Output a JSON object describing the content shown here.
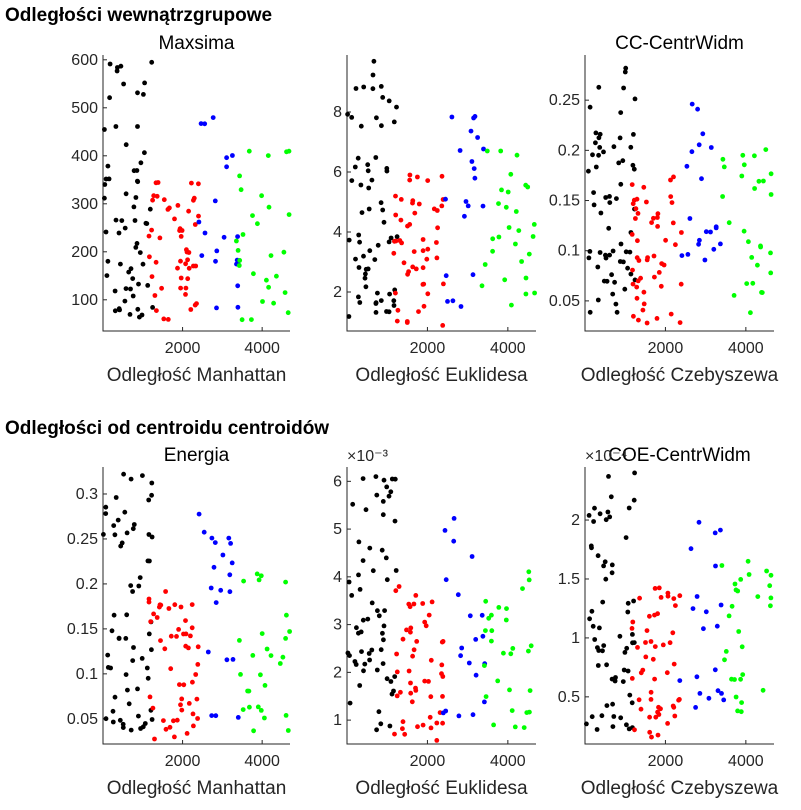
{
  "sections": {
    "top_title": "Odległości wewnątrzgrupowe",
    "bottom_title": "Odległości od centroidu centroidów"
  },
  "colors": {
    "black": "#000000",
    "red": "#ff0000",
    "blue": "#0000ff",
    "green": "#00ff00"
  },
  "chart_data": [
    {
      "type": "scatter",
      "title": "Maxsima",
      "xlabel": "Odległość Manhattan",
      "ylabel": "",
      "xlim": [
        0,
        4700
      ],
      "ylim": [
        35,
        610
      ],
      "xticks": [
        2000,
        4000
      ],
      "xtick_labels": [
        "2000",
        "4000"
      ],
      "yticks": [
        100,
        200,
        300,
        400,
        500,
        600
      ],
      "ytick_labels": [
        "100",
        "200",
        "300",
        "400",
        "500",
        "600"
      ],
      "exponent": "",
      "grid": false
    },
    {
      "type": "scatter",
      "title": "",
      "xlabel": "Odległość Euklidesa",
      "ylabel": "",
      "xlim": [
        0,
        4700
      ],
      "ylim": [
        0.7,
        9.9
      ],
      "xticks": [
        2000,
        4000
      ],
      "xtick_labels": [
        "2000",
        "4000"
      ],
      "yticks": [
        2,
        4,
        6,
        8
      ],
      "ytick_labels": [
        "2",
        "4",
        "6",
        "8"
      ],
      "exponent": "",
      "grid": false
    },
    {
      "type": "scatter",
      "title": "CC-CentrWidm",
      "xlabel": "Odległość Czebyszewa",
      "ylabel": "",
      "xlim": [
        0,
        4700
      ],
      "ylim": [
        0.02,
        0.295
      ],
      "xticks": [
        2000,
        4000
      ],
      "xtick_labels": [
        "2000",
        "4000"
      ],
      "yticks": [
        0.05,
        0.1,
        0.15,
        0.2,
        0.25
      ],
      "ytick_labels": [
        "0.05",
        "0.1",
        "0.15",
        "0.2",
        "0.25"
      ],
      "exponent": "",
      "grid": false
    },
    {
      "type": "scatter",
      "title": "Energia",
      "xlabel": "Odległość Manhattan",
      "ylabel": "",
      "xlim": [
        0,
        4700
      ],
      "ylim": [
        0.022,
        0.33
      ],
      "xticks": [
        2000,
        4000
      ],
      "xtick_labels": [
        "2000",
        "4000"
      ],
      "yticks": [
        0.05,
        0.1,
        0.15,
        0.2,
        0.25,
        0.3
      ],
      "ytick_labels": [
        "0.05",
        "0.1",
        "0.15",
        "0.2",
        "0.25",
        "0.3"
      ],
      "exponent": "",
      "grid": false
    },
    {
      "type": "scatter",
      "title": "",
      "xlabel": "Odległość Euklidesa",
      "ylabel": "",
      "xlim": [
        0,
        4700
      ],
      "ylim": [
        0.5,
        6.3
      ],
      "xticks": [
        2000,
        4000
      ],
      "xtick_labels": [
        "2000",
        "4000"
      ],
      "yticks": [
        1,
        2,
        3,
        4,
        5,
        6
      ],
      "ytick_labels": [
        "1",
        "2",
        "3",
        "4",
        "5",
        "6"
      ],
      "exponent": "×10⁻³",
      "grid": false
    },
    {
      "type": "scatter",
      "title": "COE-CentrWidm",
      "xlabel": "Odległość Czebyszewa",
      "ylabel": "",
      "xlim": [
        0,
        4700
      ],
      "ylim": [
        0.1,
        2.45
      ],
      "xticks": [
        2000,
        4000
      ],
      "xtick_labels": [
        "2000",
        "4000"
      ],
      "yticks": [
        0.5,
        1,
        1.5,
        2
      ],
      "ytick_labels": [
        "0.5",
        "1",
        "1.5",
        "2"
      ],
      "exponent": "×10⁻⁴",
      "grid": false
    }
  ]
}
